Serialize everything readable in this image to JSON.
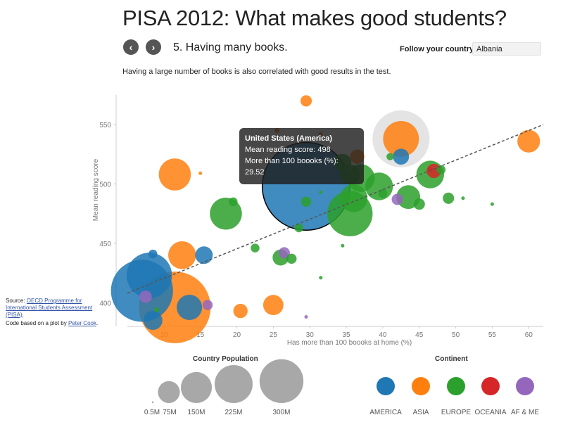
{
  "header": {
    "title": "PISA 2012: What makes good students?",
    "step": "5. Having many books.",
    "follow_label": "Follow your country",
    "country_value": "Albania",
    "prev_icon": "‹",
    "next_icon": "›"
  },
  "description": "Having a large number of books is also correlated with good results in the test.",
  "source": {
    "prefix": "Source: ",
    "link": "OECD Programme for International Students Assessment (PISA)",
    "suffix": "."
  },
  "credit": {
    "prefix": "Code based on a plot by ",
    "link": "Peter Cook",
    "suffix": "."
  },
  "tooltip": {
    "title": "United States (America)",
    "line1": "Mean reading score: 498",
    "line2": "More than 100 boooks (%):",
    "line3": "29.52"
  },
  "colors": {
    "AMERICA": "#1f77b4",
    "ASIA": "#ff7f0e",
    "EUROPE": "#2ca02c",
    "OCEANIA": "#d62728",
    "AF & ME": "#9467bd",
    "size_legend": "#999999",
    "trend": "#555555"
  },
  "legend": {
    "population_title": "Country Population",
    "population_items": [
      {
        "label": "0.5M",
        "value": 0.5
      },
      {
        "label": "75M",
        "value": 75
      },
      {
        "label": "150M",
        "value": 150
      },
      {
        "label": "225M",
        "value": 225
      },
      {
        "label": "300M",
        "value": 300
      }
    ],
    "continent_title": "Continent",
    "continent_items": [
      "AMERICA",
      "ASIA",
      "EUROPE",
      "OCEANIA",
      "AF & ME"
    ]
  },
  "chart_data": {
    "type": "scatter",
    "xlabel": "Has more than 100 boooks at home (%)",
    "ylabel": "Mean reading score",
    "xlim": [
      5,
      62
    ],
    "ylim": [
      380,
      575
    ],
    "xticks": [
      10,
      15,
      20,
      25,
      30,
      35,
      40,
      45,
      50,
      55,
      60
    ],
    "yticks": [
      400,
      450,
      500,
      550
    ],
    "trendline": {
      "x": [
        5,
        62
      ],
      "y": [
        408,
        550
      ]
    },
    "points": [
      {
        "x": 29.5,
        "y": 570,
        "pop": 5,
        "c": "ASIA"
      },
      {
        "x": 25.5,
        "y": 545,
        "pop": 1,
        "c": "ASIA"
      },
      {
        "x": 31.5,
        "y": 542,
        "pop": 0.7,
        "c": "ASIA"
      },
      {
        "x": 42.5,
        "y": 538,
        "pop": 300,
        "c": "ASIA",
        "highlight": true
      },
      {
        "x": 42.5,
        "y": 538,
        "pop": 50,
        "c": "ASIA"
      },
      {
        "x": 60,
        "y": 536,
        "pop": 20,
        "c": "ASIA"
      },
      {
        "x": 42.5,
        "y": 523,
        "pop": 10,
        "c": "AMERICA"
      },
      {
        "x": 41,
        "y": 523,
        "pop": 2,
        "c": "EUROPE"
      },
      {
        "x": 36.5,
        "y": 523,
        "pop": 8,
        "c": "ASIA"
      },
      {
        "x": 34.5,
        "y": 518,
        "pop": 12,
        "c": "EUROPE"
      },
      {
        "x": 46.5,
        "y": 512,
        "pop": 1,
        "c": "OCEANIA"
      },
      {
        "x": 46.5,
        "y": 508,
        "pop": 30,
        "c": "EUROPE"
      },
      {
        "x": 47,
        "y": 511,
        "pop": 8,
        "c": "OCEANIA"
      },
      {
        "x": 48,
        "y": 512,
        "pop": 3,
        "c": "EUROPE"
      },
      {
        "x": 11.5,
        "y": 508,
        "pop": 40,
        "c": "ASIA"
      },
      {
        "x": 15,
        "y": 509,
        "pop": 0.5,
        "c": "ASIA"
      },
      {
        "x": 37,
        "y": 505,
        "pop": 30,
        "c": "EUROPE"
      },
      {
        "x": 35.5,
        "y": 508,
        "pop": 16,
        "c": "EUROPE"
      },
      {
        "x": 39.5,
        "y": 498,
        "pop": 30,
        "c": "EUROPE"
      },
      {
        "x": 29.5,
        "y": 498,
        "pop": 300,
        "c": "AMERICA",
        "selected": true
      },
      {
        "x": 31.5,
        "y": 493,
        "pop": 0.5,
        "c": "EUROPE"
      },
      {
        "x": 40,
        "y": 492,
        "pop": 3,
        "c": "EUROPE"
      },
      {
        "x": 36,
        "y": 488,
        "pop": 30,
        "c": "EUROPE"
      },
      {
        "x": 43.5,
        "y": 489,
        "pop": 22,
        "c": "EUROPE"
      },
      {
        "x": 29.5,
        "y": 485,
        "pop": 4,
        "c": "EUROPE"
      },
      {
        "x": 45,
        "y": 483,
        "pop": 5,
        "c": "EUROPE"
      },
      {
        "x": 42,
        "y": 487,
        "pop": 5,
        "c": "AF & ME"
      },
      {
        "x": 49,
        "y": 488,
        "pop": 5,
        "c": "EUROPE"
      },
      {
        "x": 51,
        "y": 488,
        "pop": 0.5,
        "c": "EUROPE"
      },
      {
        "x": 55,
        "y": 483,
        "pop": 0.5,
        "c": "EUROPE"
      },
      {
        "x": 19.5,
        "y": 485,
        "pop": 3,
        "c": "EUROPE"
      },
      {
        "x": 18.5,
        "y": 475,
        "pop": 40,
        "c": "EUROPE"
      },
      {
        "x": 35.5,
        "y": 475,
        "pop": 80,
        "c": "EUROPE"
      },
      {
        "x": 28.5,
        "y": 463,
        "pop": 3,
        "c": "EUROPE"
      },
      {
        "x": 34.5,
        "y": 448,
        "pop": 0.5,
        "c": "EUROPE"
      },
      {
        "x": 22.5,
        "y": 446,
        "pop": 3,
        "c": "EUROPE"
      },
      {
        "x": 8.5,
        "y": 441,
        "pop": 3,
        "c": "AMERICA"
      },
      {
        "x": 12.5,
        "y": 440,
        "pop": 30,
        "c": "ASIA"
      },
      {
        "x": 15.5,
        "y": 440,
        "pop": 12,
        "c": "AMERICA"
      },
      {
        "x": 26.5,
        "y": 442,
        "pop": 5,
        "c": "AF & ME"
      },
      {
        "x": 26,
        "y": 438,
        "pop": 10,
        "c": "EUROPE"
      },
      {
        "x": 27.5,
        "y": 437,
        "pop": 4,
        "c": "EUROPE"
      },
      {
        "x": 8,
        "y": 423,
        "pop": 80,
        "c": "AMERICA"
      },
      {
        "x": 31.5,
        "y": 421,
        "pop": 0.5,
        "c": "EUROPE"
      },
      {
        "x": 7,
        "y": 410,
        "pop": 150,
        "c": "AMERICA"
      },
      {
        "x": 11.5,
        "y": 396,
        "pop": 200,
        "c": "ASIA"
      },
      {
        "x": 13.5,
        "y": 396,
        "pop": 25,
        "c": "AMERICA"
      },
      {
        "x": 16,
        "y": 398,
        "pop": 4,
        "c": "AF & ME"
      },
      {
        "x": 25,
        "y": 398,
        "pop": 16,
        "c": "ASIA"
      },
      {
        "x": 20.5,
        "y": 393,
        "pop": 8,
        "c": "ASIA"
      },
      {
        "x": 7.5,
        "y": 405,
        "pop": 6,
        "c": "AF & ME"
      },
      {
        "x": 9,
        "y": 394,
        "pop": 1,
        "c": "EUROPE"
      },
      {
        "x": 8.5,
        "y": 385,
        "pop": 14,
        "c": "AMERICA"
      },
      {
        "x": 29.5,
        "y": 388,
        "pop": 0.5,
        "c": "AF & ME"
      }
    ]
  }
}
